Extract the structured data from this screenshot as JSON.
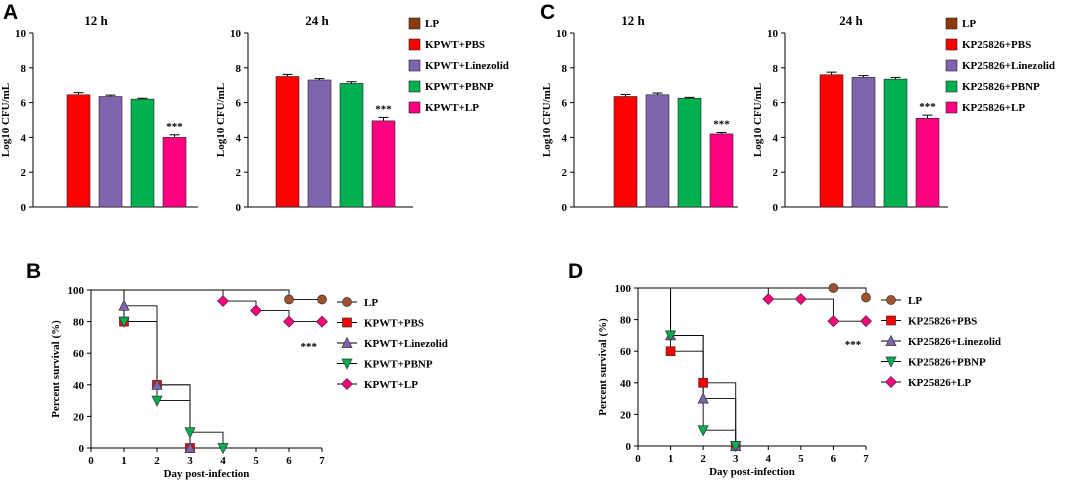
{
  "panels": [
    {
      "id": "A",
      "letter": "A"
    },
    {
      "id": "B",
      "letter": "B"
    },
    {
      "id": "C",
      "letter": "C"
    },
    {
      "id": "D",
      "letter": "D"
    }
  ],
  "chart_data": [
    {
      "panel": "A",
      "type": "bar",
      "title": "12 h",
      "ylabel": "Log10 CFU/mL",
      "ylim": [
        0,
        10
      ],
      "yticks": [
        0,
        2,
        4,
        6,
        8,
        10
      ],
      "categories": [
        "KPWT+PBS",
        "KPWT+Linezolid",
        "KPWT+PBNP",
        "KPWT+LP"
      ],
      "values": [
        6.45,
        6.35,
        6.2,
        4.0
      ],
      "errors": [
        0.12,
        0.08,
        0.05,
        0.15
      ],
      "colors": [
        "#ff0000",
        "#7f64ae",
        "#00b050",
        "#ff0080"
      ],
      "annotations": [
        {
          "category": "KPWT+LP",
          "text": "***"
        }
      ]
    },
    {
      "panel": "A",
      "type": "bar",
      "title": "24 h",
      "ylabel": "Log10 CFU/mL",
      "ylim": [
        0,
        10
      ],
      "yticks": [
        0,
        2,
        4,
        6,
        8,
        10
      ],
      "categories": [
        "KPWT+PBS",
        "KPWT+Linezolid",
        "KPWT+PBNP",
        "KPWT+LP"
      ],
      "values": [
        7.5,
        7.3,
        7.1,
        4.95
      ],
      "errors": [
        0.12,
        0.08,
        0.1,
        0.2
      ],
      "colors": [
        "#ff0000",
        "#7f64ae",
        "#00b050",
        "#ff0080"
      ],
      "annotations": [
        {
          "category": "KPWT+LP",
          "text": "***"
        }
      ]
    },
    {
      "panel": "A",
      "type": "legend",
      "entries": [
        {
          "label": "LP",
          "color": "#8b3a0f"
        },
        {
          "label": "KPWT+PBS",
          "color": "#ff0000"
        },
        {
          "label": "KPWT+Linezolid",
          "color": "#7f64ae"
        },
        {
          "label": "KPWT+PBNP",
          "color": "#00b050"
        },
        {
          "label": "KPWT+LP",
          "color": "#ff0080"
        }
      ]
    },
    {
      "panel": "C",
      "type": "bar",
      "title": "12 h",
      "ylabel": "Log10 CFU/mL",
      "ylim": [
        0,
        10
      ],
      "yticks": [
        0,
        2,
        4,
        6,
        8,
        10
      ],
      "categories": [
        "KP25826+PBS",
        "KP25826+Linezolid",
        "KP25826+PBNP",
        "KP25826+LP"
      ],
      "values": [
        6.35,
        6.45,
        6.25,
        4.2
      ],
      "errors": [
        0.12,
        0.1,
        0.05,
        0.08
      ],
      "colors": [
        "#ff0000",
        "#7f64ae",
        "#00b050",
        "#ff0080"
      ],
      "annotations": [
        {
          "category": "KP25826+LP",
          "text": "***"
        }
      ]
    },
    {
      "panel": "C",
      "type": "bar",
      "title": "24 h",
      "ylabel": "Log10 CFU/mL",
      "ylim": [
        0,
        10
      ],
      "yticks": [
        0,
        2,
        4,
        6,
        8,
        10
      ],
      "categories": [
        "KP25826+PBS",
        "KP25826+Linezolid",
        "KP25826+PBNP",
        "KP25826+LP"
      ],
      "values": [
        7.6,
        7.45,
        7.35,
        5.1
      ],
      "errors": [
        0.15,
        0.1,
        0.1,
        0.18
      ],
      "colors": [
        "#ff0000",
        "#7f64ae",
        "#00b050",
        "#ff0080"
      ],
      "annotations": [
        {
          "category": "KP25826+LP",
          "text": "***"
        }
      ]
    },
    {
      "panel": "C",
      "type": "legend",
      "entries": [
        {
          "label": "LP",
          "color": "#8b3a0f"
        },
        {
          "label": "KP25826+PBS",
          "color": "#ff0000"
        },
        {
          "label": "KP25826+Linezolid",
          "color": "#7f64ae"
        },
        {
          "label": "KP25826+PBNP",
          "color": "#00b050"
        },
        {
          "label": "KP25826+LP",
          "color": "#ff0080"
        }
      ]
    },
    {
      "panel": "B",
      "type": "line",
      "subtype": "kaplan-meier",
      "xlabel": "Day post-infection",
      "ylabel": "Percent survival (%)",
      "xlim": [
        0,
        7
      ],
      "ylim": [
        0,
        100
      ],
      "xticks": [
        0,
        1,
        2,
        3,
        4,
        5,
        6,
        7
      ],
      "yticks": [
        0,
        20,
        40,
        60,
        80,
        100
      ],
      "annotation": {
        "text": "***",
        "x": 6.6,
        "y": 67
      },
      "series": [
        {
          "name": "LP",
          "color": "#a0522d",
          "marker": "circle",
          "x": [
            0,
            6,
            7
          ],
          "y": [
            100,
            94,
            94
          ],
          "marker_x": [
            6,
            7
          ]
        },
        {
          "name": "KPWT+PBS",
          "color": "#ff0000",
          "marker": "square",
          "x": [
            0,
            1,
            2,
            3
          ],
          "y": [
            100,
            80,
            40,
            0
          ],
          "marker_x": [
            1,
            2,
            3
          ]
        },
        {
          "name": "KPWT+Linezolid",
          "color": "#7f64ae",
          "marker": "triangle-up",
          "x": [
            0,
            1,
            2,
            3
          ],
          "y": [
            100,
            90,
            40,
            0
          ],
          "marker_x": [
            1,
            2,
            3
          ]
        },
        {
          "name": "KPWT+PBNP",
          "color": "#00b050",
          "marker": "triangle-down",
          "x": [
            0,
            1,
            2,
            3,
            4
          ],
          "y": [
            100,
            80,
            30,
            10,
            0
          ],
          "marker_x": [
            1,
            2,
            3,
            4
          ]
        },
        {
          "name": "KPWT+LP",
          "color": "#ff0080",
          "marker": "diamond",
          "x": [
            0,
            4,
            5,
            6,
            7
          ],
          "y": [
            100,
            93,
            87,
            80,
            80
          ],
          "marker_x": [
            4,
            5,
            6,
            7
          ]
        }
      ]
    },
    {
      "panel": "D",
      "type": "line",
      "subtype": "kaplan-meier",
      "xlabel": "Day post-infection",
      "ylabel": "Percent survival (%)",
      "xlim": [
        0,
        7
      ],
      "ylim": [
        0,
        100
      ],
      "xticks": [
        0,
        1,
        2,
        3,
        4,
        5,
        6,
        7
      ],
      "yticks": [
        0,
        20,
        40,
        60,
        80,
        100
      ],
      "annotation": {
        "text": "***",
        "x": 6.6,
        "y": 67
      },
      "series": [
        {
          "name": "LP",
          "color": "#a0522d",
          "marker": "circle",
          "x": [
            0,
            6,
            7
          ],
          "y": [
            100,
            100,
            94
          ],
          "marker_x": [
            6,
            7
          ]
        },
        {
          "name": "KP25826+PBS",
          "color": "#ff0000",
          "marker": "square",
          "x": [
            0,
            1,
            2,
            3
          ],
          "y": [
            100,
            60,
            40,
            0
          ],
          "marker_x": [
            1,
            2,
            3
          ]
        },
        {
          "name": "KP25826+Linezolid",
          "color": "#7f64ae",
          "marker": "triangle-up",
          "x": [
            0,
            1,
            2,
            3
          ],
          "y": [
            100,
            70,
            30,
            0
          ],
          "marker_x": [
            1,
            2,
            3
          ]
        },
        {
          "name": "KP25826+PBNP",
          "color": "#00b050",
          "marker": "triangle-down",
          "x": [
            0,
            1,
            2,
            3
          ],
          "y": [
            100,
            70,
            10,
            0
          ],
          "marker_x": [
            1,
            2,
            3
          ]
        },
        {
          "name": "KP25826+LP",
          "color": "#ff0080",
          "marker": "diamond",
          "x": [
            0,
            4,
            5,
            6,
            7
          ],
          "y": [
            100,
            93,
            93,
            79,
            79
          ],
          "marker_x": [
            4,
            5,
            6,
            7
          ]
        }
      ]
    }
  ]
}
